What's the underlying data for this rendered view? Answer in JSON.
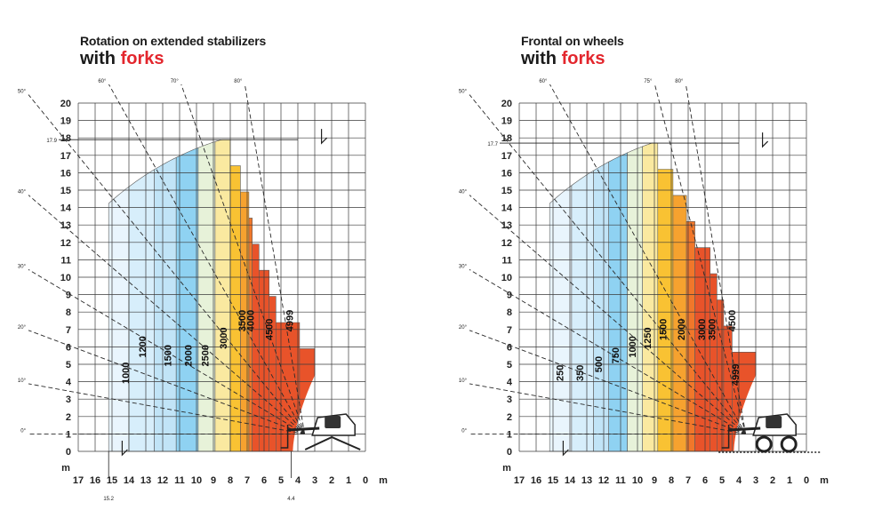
{
  "colors": {
    "accent": "#e3262d",
    "zones": [
      "#e9f5fd",
      "#d7eefb",
      "#c1e4f7",
      "#8fd2f2",
      "#e7f2d9",
      "#fae9a0",
      "#f9c233",
      "#f6a22f",
      "#f1772a",
      "#e8532a"
    ]
  },
  "chart_data": [
    {
      "type": "load-chart",
      "title": "Rotation on extended stabilizers",
      "subtitle_prefix": "with",
      "subtitle_accent": "forks",
      "unit_label": "m",
      "y_ticks": [
        0,
        1,
        2,
        3,
        4,
        5,
        6,
        7,
        8,
        9,
        10,
        11,
        12,
        13,
        14,
        15,
        16,
        17,
        18,
        19,
        20
      ],
      "x_ticks": [
        17,
        16,
        15,
        14,
        13,
        12,
        11,
        10,
        9,
        8,
        7,
        6,
        5,
        4,
        3,
        2,
        1,
        0
      ],
      "xlim": [
        17,
        0
      ],
      "ylim": [
        0,
        20
      ],
      "grid": true,
      "max_height_label": "17.9",
      "max_height": 17.9,
      "max_reach_label": "15.2",
      "max_reach": 15.2,
      "min_reach_label": "4.4",
      "min_reach": 4.4,
      "boom_angles": [
        {
          "label": "0°",
          "deg": 0
        },
        {
          "label": "10°",
          "deg": 10
        },
        {
          "label": "20°",
          "deg": 20
        },
        {
          "label": "30°",
          "deg": 30
        },
        {
          "label": "40°",
          "deg": 40
        },
        {
          "label": "50°",
          "deg": 50
        },
        {
          "label": "60°",
          "deg": 60
        },
        {
          "label": "70°",
          "deg": 70
        },
        {
          "label": "80°",
          "deg": 80
        }
      ],
      "pivot": {
        "x": 3.6,
        "y": 1.0
      },
      "boundary_xs": [
        15.2,
        14.0,
        12.5,
        11.2,
        9.9,
        8.9,
        8.0,
        7.4,
        6.9,
        6.7,
        6.3,
        5.7,
        5.3,
        3.9,
        3.0
      ],
      "load_zones": [
        {
          "label": "1000",
          "label_x": 14.0,
          "label_y": 4.5
        },
        {
          "label": "1200",
          "label_x": 13.0,
          "label_y": 6.0
        },
        {
          "label": "1500",
          "label_x": 11.5,
          "label_y": 5.5
        },
        {
          "label": "2000",
          "label_x": 10.3,
          "label_y": 5.5
        },
        {
          "label": "2500",
          "label_x": 9.3,
          "label_y": 5.5
        },
        {
          "label": "3000",
          "label_x": 8.2,
          "label_y": 6.5
        },
        {
          "label": "3500",
          "label_x": 7.1,
          "label_y": 7.5
        },
        {
          "label": "4000",
          "label_x": 6.6,
          "label_y": 7.5
        },
        {
          "label": "4500",
          "label_x": 5.5,
          "label_y": 7.0
        },
        {
          "label": "4999",
          "label_x": 4.3,
          "label_y": 7.5
        }
      ]
    },
    {
      "type": "load-chart",
      "title": "Frontal on wheels",
      "subtitle_prefix": "with",
      "subtitle_accent": "forks",
      "unit_label": "m",
      "y_ticks": [
        0,
        1,
        2,
        3,
        4,
        5,
        6,
        7,
        8,
        9,
        10,
        11,
        12,
        13,
        14,
        15,
        16,
        17,
        18,
        19,
        20
      ],
      "x_ticks": [
        17,
        16,
        15,
        14,
        13,
        12,
        11,
        10,
        9,
        8,
        7,
        6,
        5,
        4,
        3,
        2,
        1,
        0
      ],
      "xlim": [
        17,
        0
      ],
      "ylim": [
        0,
        20
      ],
      "grid": true,
      "max_height_label": "17.7",
      "max_height": 17.7,
      "boom_angles": [
        {
          "label": "0°",
          "deg": 0
        },
        {
          "label": "10°",
          "deg": 10
        },
        {
          "label": "20°",
          "deg": 20
        },
        {
          "label": "30°",
          "deg": 30
        },
        {
          "label": "40°",
          "deg": 40
        },
        {
          "label": "50°",
          "deg": 50
        },
        {
          "label": "60°",
          "deg": 60
        },
        {
          "label": "75°",
          "deg": 75
        },
        {
          "label": "80°",
          "deg": 80
        }
      ],
      "pivot": {
        "x": 3.6,
        "y": 1.0
      },
      "boundary_xs": [
        15.2,
        13.9,
        12.6,
        11.7,
        10.6,
        9.7,
        8.8,
        7.9,
        7.1,
        6.6,
        5.7,
        5.3,
        4.9,
        4.4,
        3.0
      ],
      "load_zones": [
        {
          "label": "250",
          "label_x": 14.4,
          "label_y": 4.5
        },
        {
          "label": "350",
          "label_x": 13.2,
          "label_y": 4.5
        },
        {
          "label": "500",
          "label_x": 12.1,
          "label_y": 5.0
        },
        {
          "label": "750",
          "label_x": 11.1,
          "label_y": 5.5
        },
        {
          "label": "1000",
          "label_x": 10.1,
          "label_y": 6.0
        },
        {
          "label": "1250",
          "label_x": 9.2,
          "label_y": 6.5
        },
        {
          "label": "1500",
          "label_x": 8.3,
          "label_y": 7.0
        },
        {
          "label": "2000",
          "label_x": 7.2,
          "label_y": 7.0
        },
        {
          "label": "3000",
          "label_x": 6.0,
          "label_y": 7.0
        },
        {
          "label": "3500",
          "label_x": 5.4,
          "label_y": 7.0
        },
        {
          "label": "4500",
          "label_x": 4.2,
          "label_y": 7.5
        },
        {
          "label": "4999",
          "label_x": 4.0,
          "label_y": 4.4
        }
      ]
    }
  ]
}
